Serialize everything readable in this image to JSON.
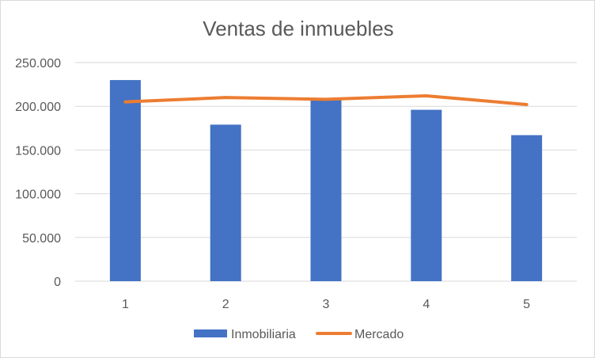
{
  "chart_data": {
    "type": "bar",
    "title": "Ventas de inmuebles",
    "xlabel": "",
    "ylabel": "",
    "categories": [
      "1",
      "2",
      "3",
      "4",
      "5"
    ],
    "ylim": [
      0,
      250000
    ],
    "yticks": [
      "0",
      "50.000",
      "100.000",
      "150.000",
      "200.000",
      "250.000"
    ],
    "grid": true,
    "legend_position": "bottom",
    "series": [
      {
        "name": "Inmobiliaria",
        "type": "bar",
        "color": "#4472C4",
        "values": [
          230000,
          179000,
          207000,
          196000,
          167000
        ]
      },
      {
        "name": "Mercado",
        "type": "line",
        "color": "#ED7D31",
        "values": [
          205000,
          210000,
          208000,
          212000,
          202000
        ]
      }
    ]
  }
}
